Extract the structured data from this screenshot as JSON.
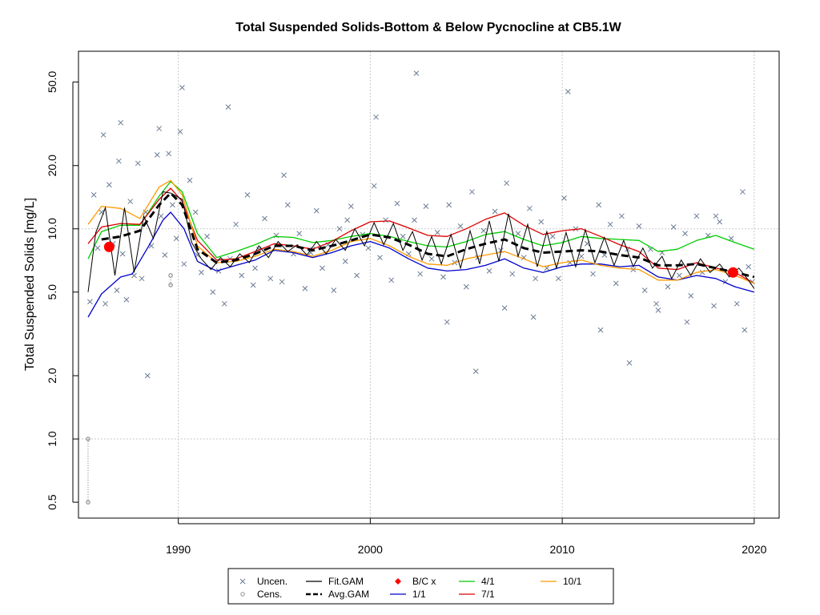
{
  "chart_data": {
    "type": "line",
    "title": "Total Suspended Solids-Bottom & Below Pycnocline at CB5.1W",
    "xlabel": "",
    "ylabel": "Total Suspended Solids [mg/L]",
    "y_scale": "log",
    "xlim": [
      1984.8,
      2021.3
    ],
    "ylim": [
      0.42,
      70
    ],
    "x_ticks": [
      1990,
      2000,
      2010,
      2020
    ],
    "x_tick_labels": [
      "1990",
      "2000",
      "2010",
      "2020"
    ],
    "y_ticks": [
      0.5,
      1.0,
      2.0,
      5.0,
      10.0,
      20.0,
      50.0
    ],
    "y_tick_labels": [
      "0.5",
      "1.0",
      "2.0",
      "5.0",
      "10.0",
      "20.0",
      "50.0"
    ],
    "grid": true,
    "legend_position": "bottom",
    "legend": [
      {
        "label": "Uncen.",
        "symbol": "x",
        "color": "#6b7b93"
      },
      {
        "label": "Cens.",
        "symbol": "circle",
        "color": "#8c8c8c"
      },
      {
        "label": "Fit.GAM",
        "symbol": "line",
        "color": "#000000"
      },
      {
        "label": "Avg.GAM",
        "symbol": "dashed",
        "color": "#000000"
      },
      {
        "label": "B/C x",
        "symbol": "diamond",
        "color": "#ff0000"
      },
      {
        "label": "1/1",
        "symbol": "line",
        "color": "#0000cc"
      },
      {
        "label": "4/1",
        "symbol": "line",
        "color": "#00cc00"
      },
      {
        "label": "7/1",
        "symbol": "line",
        "color": "#dd0000"
      },
      {
        "label": "10/1",
        "symbol": "line",
        "color": "#ff9900"
      }
    ],
    "series": [
      {
        "name": "Avg.GAM",
        "color": "#000000",
        "x": [
          1986,
          1987,
          1988,
          1989,
          1989.6,
          1990.2,
          1991,
          1992,
          1993,
          1994,
          1995,
          1996,
          1997,
          1998,
          1999,
          2000,
          2001,
          2002,
          2003,
          2004,
          2005,
          2006,
          2007,
          2008,
          2009,
          2010,
          2011,
          2012,
          2013,
          2014,
          2015,
          2016,
          2017,
          2018,
          2019,
          2020
        ],
        "y": [
          8.9,
          9.2,
          9.8,
          13,
          14.8,
          13,
          8,
          6.9,
          7.1,
          7.6,
          8.3,
          8.3,
          7.9,
          8.3,
          8.8,
          9.4,
          9.1,
          8.4,
          7.6,
          7.4,
          8,
          8.5,
          8.9,
          8.1,
          7.7,
          7.8,
          7.9,
          7.8,
          7.5,
          7.3,
          6.7,
          6.7,
          6.8,
          6.5,
          6.2,
          5.9
        ]
      },
      {
        "name": "1/1",
        "color": "#0000cc",
        "x": [
          1985.3,
          1986,
          1987,
          1987.6,
          1988.5,
          1989.2,
          1989.6,
          1990.3,
          1991,
          1992,
          1993,
          1994,
          1995,
          1996,
          1997,
          1998,
          1999,
          2000,
          2001,
          2002,
          2003,
          2004,
          2005,
          2006,
          2007,
          2008,
          2009,
          2010,
          2011,
          2012,
          2013,
          2014,
          2015,
          2016,
          2017,
          2018,
          2019,
          2020
        ],
        "y": [
          3.8,
          4.9,
          5.9,
          6.1,
          8.4,
          11,
          12,
          10,
          7,
          6.3,
          6.7,
          7.1,
          7.9,
          7.7,
          7.3,
          7.7,
          8.3,
          8.7,
          8.1,
          7.2,
          6.5,
          6.3,
          6.4,
          6.7,
          7.2,
          6.5,
          6.2,
          6.6,
          6.8,
          6.8,
          6.6,
          6.7,
          5.9,
          5.7,
          6,
          5.8,
          5.3,
          5
        ]
      },
      {
        "name": "4/1",
        "color": "#00cc00",
        "x": [
          1985.3,
          1986,
          1987,
          1988,
          1989,
          1989.6,
          1990.2,
          1991,
          1992,
          1993,
          1994,
          1995,
          1996,
          1997,
          1998,
          1999,
          2000,
          2001,
          2002,
          2003,
          2004,
          2005,
          2006,
          2007,
          2008,
          2009,
          2010,
          2011,
          2012,
          2013,
          2014,
          2015,
          2016,
          2017,
          2018,
          2019,
          2020
        ],
        "y": [
          7.2,
          9.7,
          10.4,
          10.4,
          14.3,
          16.8,
          15,
          9.5,
          7.3,
          7.8,
          8.4,
          9.2,
          9.1,
          8.6,
          8.8,
          9.2,
          9.5,
          9.2,
          8.7,
          8.3,
          8.2,
          8.7,
          9.4,
          9.7,
          8.9,
          8.3,
          8.6,
          9.2,
          9,
          8.9,
          8.8,
          7.8,
          8,
          8.8,
          9.3,
          8.6,
          8
        ]
      },
      {
        "name": "7/1",
        "color": "#dd0000",
        "x": [
          1985.3,
          1986,
          1987,
          1988,
          1989,
          1989.6,
          1990.2,
          1991,
          1992,
          1993,
          1994,
          1995,
          1996,
          1997,
          1998,
          1999,
          2000,
          2001,
          2002,
          2003,
          2004,
          2005,
          2006,
          2007,
          2008,
          2009,
          2010,
          2011,
          2012,
          2013,
          2014,
          2015,
          2016,
          2017,
          2018,
          2019,
          2020
        ],
        "y": [
          8.5,
          10.2,
          10.6,
          10.5,
          13.8,
          15.6,
          13.5,
          8.8,
          7.1,
          7.2,
          7.8,
          8.5,
          8.3,
          8,
          8.7,
          9.8,
          10.8,
          10.9,
          10.1,
          9.3,
          9.2,
          10,
          11.1,
          11.9,
          10.4,
          9.4,
          9.8,
          10,
          9.2,
          8.4,
          7.8,
          6.5,
          6.4,
          6.9,
          6.5,
          6.2,
          5.5
        ]
      },
      {
        "name": "10/1",
        "color": "#ff9900",
        "x": [
          1985.3,
          1986,
          1987,
          1988,
          1989,
          1989.6,
          1990.2,
          1991,
          1992,
          1993,
          1994,
          1995,
          1996,
          1997,
          1998,
          1999,
          2000,
          2001,
          2002,
          2003,
          2004,
          2005,
          2006,
          2007,
          2008,
          2009,
          2010,
          2011,
          2012,
          2013,
          2014,
          2015,
          2016,
          2017,
          2018,
          2019,
          2020
        ],
        "y": [
          10.5,
          12.8,
          12.5,
          11.2,
          15.8,
          17,
          14.5,
          8.3,
          6.9,
          7,
          7.4,
          8,
          7.8,
          7.4,
          7.9,
          8.7,
          9,
          8.3,
          7.4,
          6.8,
          6.7,
          7.2,
          7.5,
          7.8,
          7.2,
          6.6,
          6.9,
          7.1,
          6.7,
          6.5,
          6.4,
          5.7,
          5.7,
          6.2,
          6.4,
          6,
          5.5
        ]
      }
    ],
    "fit_gam": {
      "name": "Fit.GAM",
      "color": "#000000",
      "description_free": true,
      "x": [
        1985.3,
        1985.7,
        1986.2,
        1986.7,
        1987.2,
        1987.7,
        1988.2,
        1988.7,
        1989.2,
        1989.6,
        1990.2,
        1990.7,
        1991.2,
        1991.7,
        1992.2,
        1992.7,
        1993.2,
        1993.7,
        1994.2,
        1994.7,
        1995.2,
        1995.7,
        1996.2,
        1996.7,
        1997.2,
        1997.7,
        1998.2,
        1998.7,
        1999.2,
        1999.7,
        2000.2,
        2000.7,
        2001.2,
        2001.7,
        2002.2,
        2002.7,
        2003.2,
        2003.7,
        2004.2,
        2004.7,
        2005.2,
        2005.7,
        2006.2,
        2006.7,
        2007.2,
        2007.7,
        2008.2,
        2008.7,
        2009.2,
        2009.7,
        2010.2,
        2010.7,
        2011.2,
        2011.7,
        2012.2,
        2012.7,
        2013.2,
        2013.7,
        2014.2,
        2014.7,
        2015.2,
        2015.7,
        2016.2,
        2016.7,
        2017.2,
        2017.7,
        2018.2,
        2018.7,
        2019.2,
        2019.7,
        2020
      ],
      "y": [
        5,
        9.6,
        12.6,
        6,
        12.6,
        6.2,
        11.5,
        9,
        15,
        14.8,
        13.8,
        8.6,
        7.2,
        6.4,
        7.3,
        6.6,
        7.6,
        6.9,
        8.3,
        7.3,
        8.7,
        7.8,
        8.4,
        7.5,
        8.7,
        7.6,
        8.9,
        7.9,
        10,
        8.3,
        10.7,
        8.4,
        10.6,
        7.9,
        9.7,
        7.1,
        9.2,
        6.8,
        9.4,
        6.5,
        9.8,
        6.8,
        10.9,
        7,
        11.8,
        7.4,
        10.5,
        6.6,
        9.7,
        6.5,
        9.6,
        6.6,
        9.9,
        6.9,
        9.1,
        6.7,
        8.8,
        6.6,
        8.1,
        6.5,
        7.4,
        5.8,
        7.1,
        6,
        7.2,
        6.2,
        6.8,
        5.9,
        6.5,
        5.7,
        5.2
      ]
    },
    "bc_points": {
      "label": "B/C x",
      "x": [
        1986.4,
        2018.9
      ],
      "y": [
        8.2,
        6.2
      ]
    },
    "censored": {
      "label": "Cens.",
      "x": [
        1985.3,
        1985.3,
        1989.6,
        1989.6
      ],
      "y_low": [
        0.5,
        0.5,
        5.4,
        5.4
      ],
      "y_high": [
        1.0,
        1.0,
        6.0,
        6.0
      ]
    },
    "uncensored_sample": {
      "label": "Uncen.",
      "x": [
        1985.4,
        1985.6,
        1985.8,
        1986.0,
        1986.2,
        1986.4,
        1986.6,
        1986.8,
        1986.9,
        1987.1,
        1987.3,
        1987.5,
        1987.7,
        1987.9,
        1988.1,
        1988.3,
        1988.6,
        1988.9,
        1989.1,
        1989.3,
        1989.5,
        1989.7,
        1989.9,
        1990.1,
        1990.3,
        1990.6,
        1990.9,
        1991.2,
        1991.5,
        1991.8,
        1992.1,
        1992.4,
        1992.7,
        1993.0,
        1993.3,
        1993.6,
        1993.9,
        1994.2,
        1994.5,
        1994.8,
        1995.1,
        1995.4,
        1995.7,
        1996.0,
        1996.3,
        1996.6,
        1996.9,
        1997.2,
        1997.5,
        1997.8,
        1998.1,
        1998.4,
        1998.7,
        1999.0,
        1999.3,
        1999.6,
        1999.9,
        2000.2,
        2000.5,
        2000.8,
        2001.1,
        2001.4,
        2001.7,
        2002.0,
        2002.3,
        2002.6,
        2002.9,
        2003.2,
        2003.5,
        2003.8,
        2004.1,
        2004.4,
        2004.7,
        2005.0,
        2005.3,
        2005.6,
        2005.9,
        2006.2,
        2006.5,
        2006.8,
        2007.1,
        2007.4,
        2007.7,
        2008.0,
        2008.3,
        2008.6,
        2008.9,
        2009.2,
        2009.5,
        2009.8,
        2010.1,
        2010.4,
        2010.7,
        2011.0,
        2011.3,
        2011.6,
        2011.9,
        2012.2,
        2012.5,
        2012.8,
        2013.1,
        2013.4,
        2013.7,
        2014.0,
        2014.3,
        2014.6,
        2014.9,
        2015.2,
        2015.5,
        2015.8,
        2016.1,
        2016.4,
        2016.7,
        2017.0,
        2017.3,
        2017.6,
        2017.9,
        2018.2,
        2018.5,
        2018.8,
        2019.1,
        2019.4,
        2019.7,
        2019.9,
        1986.1,
        1987.0,
        1988.4,
        1989.0,
        1990.2,
        1991.0,
        1992.6,
        1994.0,
        1995.5,
        1997.0,
        1998.8,
        2000.3,
        2002.4,
        2004.0,
        2005.5,
        2007.0,
        2008.5,
        2010.3,
        2012.0,
        2013.5,
        2015.0,
        2016.5,
        2018.0,
        2019.5
      ],
      "y": [
        4.5,
        14.5,
        8.1,
        12,
        4.4,
        16.2,
        8.5,
        5.1,
        21,
        7.6,
        4.6,
        13.5,
        6,
        20.5,
        5.8,
        12,
        8.3,
        22.5,
        11.5,
        7.5,
        22.8,
        13,
        9,
        29,
        6.8,
        17,
        12,
        6.2,
        9.2,
        5,
        6.3,
        4.4,
        7.2,
        10.5,
        6,
        14.5,
        5.4,
        8,
        11.2,
        5.8,
        9.3,
        5.6,
        13,
        7.6,
        9.5,
        5.2,
        7.7,
        12.2,
        6.5,
        8.4,
        5.1,
        10,
        7,
        12.8,
        6,
        9.4,
        8.1,
        16,
        7.3,
        11,
        5.7,
        13.2,
        9.2,
        7.6,
        11,
        6.1,
        12.8,
        7.2,
        9.6,
        5.9,
        13,
        6.9,
        10.3,
        5.3,
        15,
        7.3,
        9.8,
        6.3,
        12.1,
        7.9,
        16.5,
        6.1,
        9.5,
        7.3,
        12.5,
        5.8,
        10.8,
        6.5,
        9.2,
        5.8,
        14,
        6.9,
        10,
        7.4,
        8.5,
        6.1,
        13,
        7.5,
        10.5,
        5.5,
        11.5,
        8,
        6.4,
        10.3,
        5.1,
        8,
        4.4,
        7.7,
        5.3,
        10.2,
        6,
        9.5,
        4.8,
        11.5,
        6.2,
        9.3,
        4.3,
        10.8,
        5.6,
        9,
        4.4,
        15,
        6.6,
        5.6,
        28,
        32,
        2.0,
        30,
        47,
        7.5,
        38,
        6.5,
        18,
        8,
        11,
        34,
        55,
        3.6,
        2.1,
        4.2,
        3.8,
        45,
        3.3,
        2.3,
        4.1,
        3.6,
        11.5,
        3.3
      ]
    }
  }
}
